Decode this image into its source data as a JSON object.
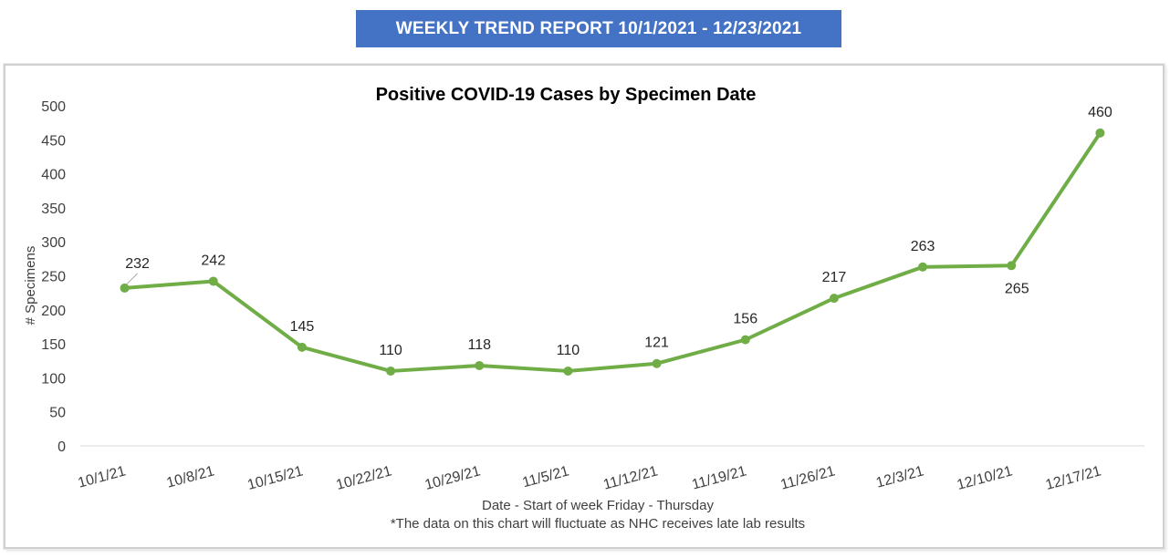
{
  "banner": {
    "text": "WEEKLY TREND REPORT 10/1/2021 - 12/23/2021"
  },
  "colors": {
    "banner_bg": "#4472c4",
    "series_line": "#70ad47",
    "axis_line": "#d9d9d9"
  },
  "chart_data": {
    "type": "line",
    "title": "Positive COVID-19 Cases by Specimen Date",
    "xlabel": "Date - Start of week Friday - Thursday",
    "footnote": "*The data on this chart will fluctuate as NHC receives late lab results",
    "ylabel": "# Specimens",
    "ylim": [
      0,
      500
    ],
    "yticks": [
      0,
      50,
      100,
      150,
      200,
      250,
      300,
      350,
      400,
      450,
      500
    ],
    "grid": false,
    "legend": "none",
    "categories": [
      "10/1/21",
      "10/8/21",
      "10/15/21",
      "10/22/21",
      "10/29/21",
      "11/5/21",
      "11/12/21",
      "11/19/21",
      "11/26/21",
      "12/3/21",
      "12/10/21",
      "12/17/21"
    ],
    "series": [
      {
        "values": [
          232,
          242,
          145,
          110,
          118,
          110,
          121,
          156,
          217,
          263,
          265,
          460
        ]
      }
    ],
    "data_labels": [
      "232",
      "242",
      "145",
      "110",
      "118",
      "110",
      "121",
      "156",
      "217",
      "263",
      "265",
      "460"
    ]
  }
}
